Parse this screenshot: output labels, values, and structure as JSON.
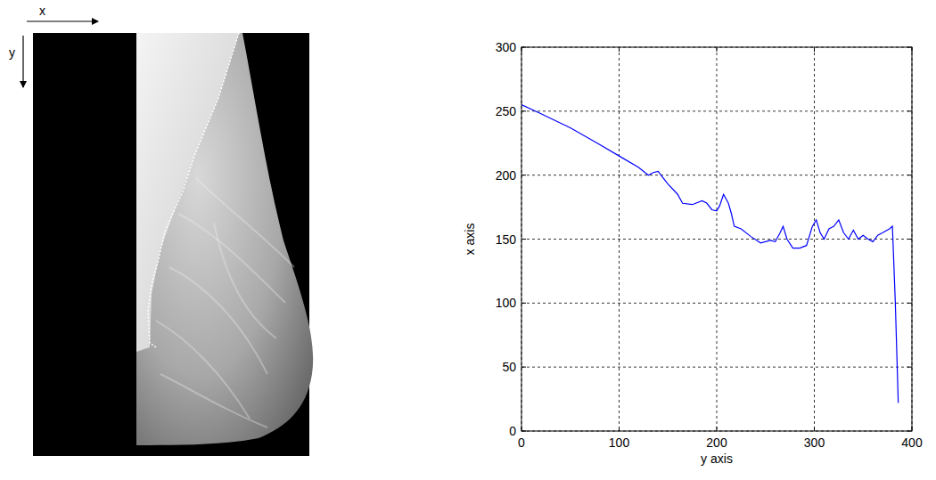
{
  "image": {
    "x_arrow_label": "x",
    "y_arrow_label": "y"
  },
  "chart_data": {
    "type": "line",
    "x_label": "y axis",
    "y_label": "x axis",
    "x": [
      0,
      20,
      50,
      80,
      100,
      120,
      130,
      135,
      140,
      145,
      150,
      160,
      165,
      175,
      185,
      190,
      195,
      200,
      203,
      207,
      212,
      215,
      218,
      225,
      235,
      245,
      255,
      260,
      265,
      268,
      272,
      278,
      285,
      292,
      298,
      302,
      306,
      310,
      315,
      320,
      325,
      330,
      335,
      340,
      345,
      350,
      355,
      360,
      365,
      370,
      377,
      380,
      383,
      386
    ],
    "values": [
      255,
      248,
      237,
      224,
      215,
      206,
      200,
      202,
      203,
      198,
      193,
      185,
      178,
      177,
      180,
      178,
      173,
      172,
      176,
      185,
      178,
      170,
      160,
      158,
      152,
      147,
      149,
      148,
      155,
      160,
      150,
      143,
      143,
      145,
      160,
      165,
      155,
      150,
      158,
      160,
      165,
      155,
      150,
      157,
      150,
      153,
      150,
      148,
      153,
      155,
      158,
      160,
      100,
      22
    ],
    "color": "#0000ff",
    "xlim": [
      0,
      400
    ],
    "xticks": [
      0,
      100,
      200,
      300,
      400
    ],
    "ylim": [
      0,
      300
    ],
    "yticks": [
      0,
      50,
      100,
      150,
      200,
      250,
      300
    ],
    "grid": true
  }
}
